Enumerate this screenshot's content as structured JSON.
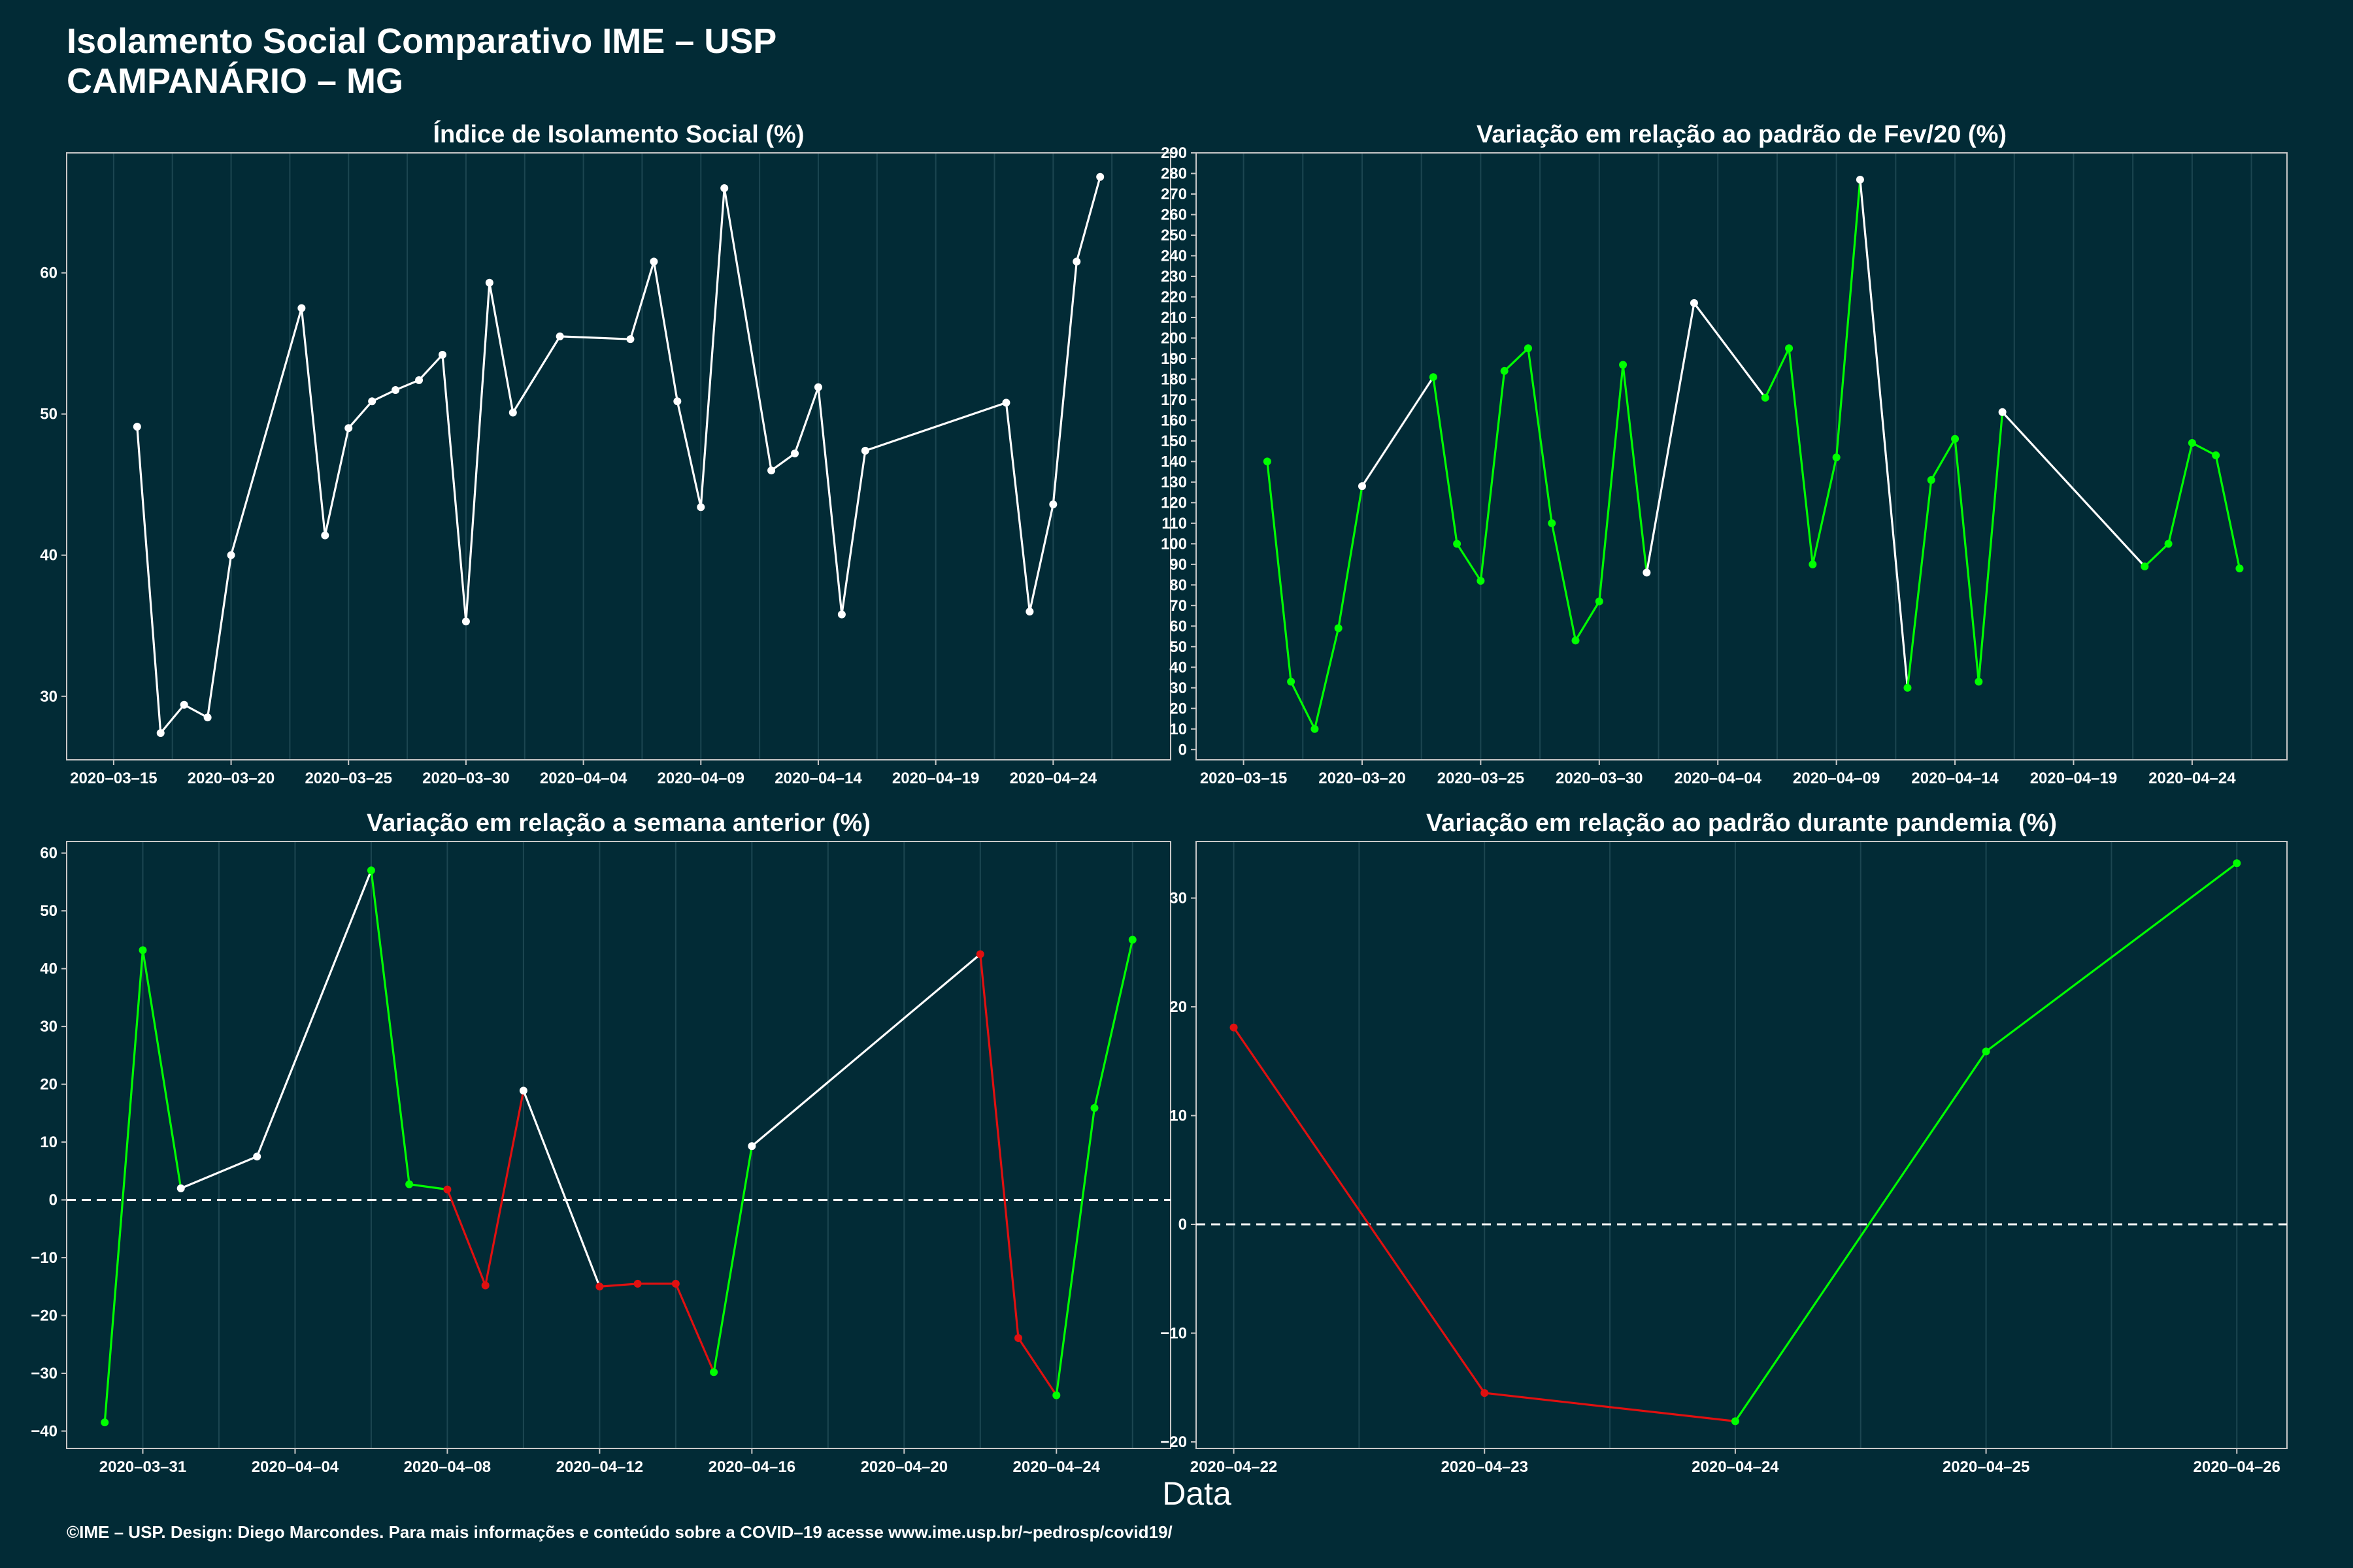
{
  "header": {
    "title_line1": "Isolamento Social Comparativo IME – USP",
    "title_line2": "CAMPANÁRIO – MG"
  },
  "footer": {
    "text": "©IME – USP. Design: Diego Marcondes. Para mais informações e conteúdo sobre a COVID–19 acesse www.ime.usp.br/~pedrosp/covid19/"
  },
  "colors": {
    "background": "#022b36",
    "panel_border": "#c8c8c8",
    "grid": "#1c4651",
    "white_line": "#ffffff",
    "green_line": "#00ff00",
    "red_line": "#e01010"
  },
  "chart_data": [
    {
      "id": "isolamento",
      "type": "line",
      "title": "Índice de Isolamento Social (%)",
      "xlabel": "",
      "ylabel": "",
      "x_type": "date",
      "xlim": [
        "2020-03-13",
        "2020-04-29"
      ],
      "ylim": [
        25.5,
        68.5
      ],
      "xticks": [
        "2020-03-15",
        "2020-03-20",
        "2020-03-25",
        "2020-03-30",
        "2020-04-04",
        "2020-04-09",
        "2020-04-14",
        "2020-04-19",
        "2020-04-24"
      ],
      "xtick_labels": [
        "2020–03–15",
        "2020–03–20",
        "2020–03–25",
        "2020–03–30",
        "2020–04–04",
        "2020–04–09",
        "2020–04–14",
        "2020–04–19",
        "2020–04–24"
      ],
      "yticks": [
        30,
        40,
        50,
        60
      ],
      "ytick_labels": [
        "30",
        "40",
        "50",
        "60"
      ],
      "zero_line": false,
      "points": [
        {
          "x": "2020-03-16",
          "y": 49.1,
          "c": "w"
        },
        {
          "x": "2020-03-17",
          "y": 27.4,
          "c": "w"
        },
        {
          "x": "2020-03-18",
          "y": 29.4,
          "c": "w"
        },
        {
          "x": "2020-03-19",
          "y": 28.5,
          "c": "w"
        },
        {
          "x": "2020-03-20",
          "y": 40.0,
          "c": "w"
        },
        {
          "x": "2020-03-23",
          "y": 57.5,
          "c": "w"
        },
        {
          "x": "2020-03-24",
          "y": 41.4,
          "c": "w"
        },
        {
          "x": "2020-03-25",
          "y": 49.0,
          "c": "w"
        },
        {
          "x": "2020-03-26",
          "y": 50.9,
          "c": "w"
        },
        {
          "x": "2020-03-27",
          "y": 51.7,
          "c": "w"
        },
        {
          "x": "2020-03-28",
          "y": 52.4,
          "c": "w"
        },
        {
          "x": "2020-03-29",
          "y": 54.2,
          "c": "w"
        },
        {
          "x": "2020-03-30",
          "y": 35.3,
          "c": "w"
        },
        {
          "x": "2020-03-31",
          "y": 59.3,
          "c": "w"
        },
        {
          "x": "2020-04-01",
          "y": 50.1,
          "c": "w"
        },
        {
          "x": "2020-04-03",
          "y": 55.5,
          "c": "w"
        },
        {
          "x": "2020-04-06",
          "y": 55.3,
          "c": "w"
        },
        {
          "x": "2020-04-07",
          "y": 60.8,
          "c": "w"
        },
        {
          "x": "2020-04-08",
          "y": 50.9,
          "c": "w"
        },
        {
          "x": "2020-04-09",
          "y": 43.4,
          "c": "w"
        },
        {
          "x": "2020-04-10",
          "y": 66.0,
          "c": "w"
        },
        {
          "x": "2020-04-12",
          "y": 46.0,
          "c": "w"
        },
        {
          "x": "2020-04-13",
          "y": 47.2,
          "c": "w"
        },
        {
          "x": "2020-04-14",
          "y": 51.9,
          "c": "w"
        },
        {
          "x": "2020-04-15",
          "y": 35.8,
          "c": "w"
        },
        {
          "x": "2020-04-16",
          "y": 47.4,
          "c": "w"
        },
        {
          "x": "2020-04-22",
          "y": 50.8,
          "c": "w"
        },
        {
          "x": "2020-04-23",
          "y": 36.0,
          "c": "w"
        },
        {
          "x": "2020-04-24",
          "y": 43.6,
          "c": "w"
        },
        {
          "x": "2020-04-25",
          "y": 60.8,
          "c": "w"
        },
        {
          "x": "2020-04-26",
          "y": 66.8,
          "c": "w"
        }
      ]
    },
    {
      "id": "fev20",
      "type": "line",
      "title": "Variação em relação ao padrão de Fev/20 (%)",
      "xlabel": "",
      "ylabel": "",
      "x_type": "date",
      "xlim": [
        "2020-03-13",
        "2020-04-28"
      ],
      "ylim": [
        -5,
        290
      ],
      "xticks": [
        "2020-03-15",
        "2020-03-20",
        "2020-03-25",
        "2020-03-30",
        "2020-04-04",
        "2020-04-09",
        "2020-04-14",
        "2020-04-19",
        "2020-04-24"
      ],
      "xtick_labels": [
        "2020–03–15",
        "2020–03–20",
        "2020–03–25",
        "2020–03–30",
        "2020–04–04",
        "2020–04–09",
        "2020–04–14",
        "2020–04–19",
        "2020–04–24"
      ],
      "yticks": [
        0,
        10,
        20,
        30,
        40,
        50,
        60,
        70,
        80,
        90,
        100,
        110,
        120,
        130,
        140,
        150,
        160,
        170,
        180,
        190,
        200,
        210,
        220,
        230,
        240,
        250,
        260,
        270,
        280,
        290
      ],
      "ytick_labels": [
        "0",
        "10",
        "20",
        "30",
        "40",
        "50",
        "60",
        "70",
        "80",
        "90",
        "100",
        "110",
        "120",
        "130",
        "140",
        "150",
        "160",
        "170",
        "180",
        "190",
        "200",
        "210",
        "220",
        "230",
        "240",
        "250",
        "260",
        "270",
        "280",
        "290"
      ],
      "zero_line": false,
      "points": [
        {
          "x": "2020-03-16",
          "y": 140,
          "c": "g"
        },
        {
          "x": "2020-03-17",
          "y": 33,
          "c": "g"
        },
        {
          "x": "2020-03-18",
          "y": 10,
          "c": "g"
        },
        {
          "x": "2020-03-19",
          "y": 59,
          "c": "g"
        },
        {
          "x": "2020-03-20",
          "y": 128,
          "c": "w"
        },
        {
          "x": "2020-03-23",
          "y": 181,
          "c": "g"
        },
        {
          "x": "2020-03-24",
          "y": 100,
          "c": "g"
        },
        {
          "x": "2020-03-25",
          "y": 82,
          "c": "g"
        },
        {
          "x": "2020-03-26",
          "y": 184,
          "c": "g"
        },
        {
          "x": "2020-03-27",
          "y": 195,
          "c": "g"
        },
        {
          "x": "2020-03-28",
          "y": 110,
          "c": "g"
        },
        {
          "x": "2020-03-29",
          "y": 53,
          "c": "g"
        },
        {
          "x": "2020-03-30",
          "y": 72,
          "c": "g"
        },
        {
          "x": "2020-03-31",
          "y": 187,
          "c": "g"
        },
        {
          "x": "2020-04-01",
          "y": 86,
          "c": "w"
        },
        {
          "x": "2020-04-03",
          "y": 217,
          "c": "w"
        },
        {
          "x": "2020-04-06",
          "y": 171,
          "c": "g"
        },
        {
          "x": "2020-04-07",
          "y": 195,
          "c": "g"
        },
        {
          "x": "2020-04-08",
          "y": 90,
          "c": "g"
        },
        {
          "x": "2020-04-09",
          "y": 142,
          "c": "g"
        },
        {
          "x": "2020-04-10",
          "y": 277,
          "c": "w"
        },
        {
          "x": "2020-04-12",
          "y": 30,
          "c": "g"
        },
        {
          "x": "2020-04-13",
          "y": 131,
          "c": "g"
        },
        {
          "x": "2020-04-14",
          "y": 151,
          "c": "g"
        },
        {
          "x": "2020-04-15",
          "y": 33,
          "c": "g"
        },
        {
          "x": "2020-04-16",
          "y": 164,
          "c": "w"
        },
        {
          "x": "2020-04-22",
          "y": 89,
          "c": "g"
        },
        {
          "x": "2020-04-23",
          "y": 100,
          "c": "g"
        },
        {
          "x": "2020-04-24",
          "y": 149,
          "c": "g"
        },
        {
          "x": "2020-04-25",
          "y": 143,
          "c": "g"
        },
        {
          "x": "2020-04-26",
          "y": 88,
          "c": "g"
        }
      ]
    },
    {
      "id": "semana",
      "type": "line",
      "title": "Variação em relação a semana anterior (%)",
      "xlabel": "",
      "ylabel": "",
      "x_type": "date",
      "xlim": [
        "2020-03-29",
        "2020-04-27"
      ],
      "ylim": [
        -43,
        62
      ],
      "xticks": [
        "2020-03-31",
        "2020-04-04",
        "2020-04-08",
        "2020-04-12",
        "2020-04-16",
        "2020-04-20",
        "2020-04-24"
      ],
      "xtick_labels": [
        "2020–03–31",
        "2020–04–04",
        "2020–04–08",
        "2020–04–12",
        "2020–04–16",
        "2020–04–20",
        "2020–04–24"
      ],
      "yticks": [
        -40,
        -30,
        -20,
        -10,
        0,
        10,
        20,
        30,
        40,
        50,
        60
      ],
      "ytick_labels": [
        "−40",
        "−30",
        "−20",
        "−10",
        "0",
        "10",
        "20",
        "30",
        "40",
        "50",
        "60"
      ],
      "zero_line": true,
      "points": [
        {
          "x": "2020-03-30",
          "y": -38.5,
          "c": "g"
        },
        {
          "x": "2020-03-31",
          "y": 43.2,
          "c": "g"
        },
        {
          "x": "2020-04-01",
          "y": 2.0,
          "c": "w"
        },
        {
          "x": "2020-04-03",
          "y": 7.5,
          "c": "w"
        },
        {
          "x": "2020-04-06",
          "y": 57.0,
          "c": "g"
        },
        {
          "x": "2020-04-07",
          "y": 2.7,
          "c": "g"
        },
        {
          "x": "2020-04-08",
          "y": 1.8,
          "c": "r"
        },
        {
          "x": "2020-04-09",
          "y": -14.8,
          "c": "r"
        },
        {
          "x": "2020-04-10",
          "y": 18.9,
          "c": "w"
        },
        {
          "x": "2020-04-12",
          "y": -15.0,
          "c": "r"
        },
        {
          "x": "2020-04-13",
          "y": -14.5,
          "c": "r"
        },
        {
          "x": "2020-04-14",
          "y": -14.5,
          "c": "r"
        },
        {
          "x": "2020-04-15",
          "y": -29.8,
          "c": "g"
        },
        {
          "x": "2020-04-16",
          "y": 9.3,
          "c": "w"
        },
        {
          "x": "2020-04-22",
          "y": 42.5,
          "c": "r"
        },
        {
          "x": "2020-04-23",
          "y": -23.9,
          "c": "r"
        },
        {
          "x": "2020-04-24",
          "y": -33.8,
          "c": "g"
        },
        {
          "x": "2020-04-25",
          "y": 15.9,
          "c": "g"
        },
        {
          "x": "2020-04-26",
          "y": 45.0,
          "c": "g"
        }
      ]
    },
    {
      "id": "pandemia",
      "type": "line",
      "title": "Variação em relação ao padrão durante pandemia (%)",
      "xlabel": "",
      "ylabel": "",
      "x_type": "date",
      "xlim": [
        "2020-04-21.85",
        "2020-04-26.2"
      ],
      "ylim": [
        -20.6,
        35.2
      ],
      "xticks": [
        "2020-04-22",
        "2020-04-23",
        "2020-04-24",
        "2020-04-25",
        "2020-04-26"
      ],
      "xtick_labels": [
        "2020–04–22",
        "2020–04–23",
        "2020–04–24",
        "2020–04–25",
        "2020–04–26"
      ],
      "yticks": [
        -20,
        -10,
        0,
        10,
        20,
        30
      ],
      "ytick_labels": [
        "−20",
        "−10",
        "0",
        "10",
        "20",
        "30"
      ],
      "zero_line": true,
      "points": [
        {
          "x": "2020-04-22",
          "y": 18.1,
          "c": "r"
        },
        {
          "x": "2020-04-23",
          "y": -15.5,
          "c": "r"
        },
        {
          "x": "2020-04-24",
          "y": -18.1,
          "c": "g"
        },
        {
          "x": "2020-04-25",
          "y": 15.9,
          "c": "g"
        },
        {
          "x": "2020-04-26",
          "y": 33.2,
          "c": "g"
        }
      ]
    }
  ],
  "shared_xlabel": "Data"
}
